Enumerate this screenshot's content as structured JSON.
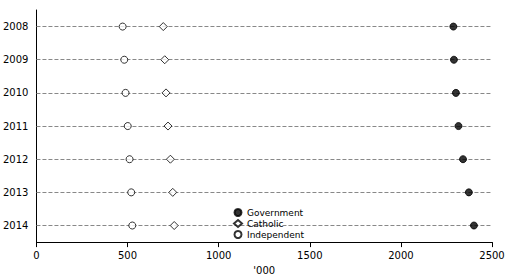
{
  "chart_data": {
    "type": "scatter",
    "orientation": "horizontal",
    "xlabel": "'000",
    "categories": [
      "2008",
      "2009",
      "2010",
      "2011",
      "2012",
      "2013",
      "2014"
    ],
    "series": [
      {
        "name": "Government",
        "color": "#000000",
        "marker": "filled_circle",
        "values": [
          2288,
          2291,
          2302,
          2316,
          2341,
          2373,
          2401
        ]
      },
      {
        "name": "Catholic",
        "color": "#000000",
        "marker": "open_diamond",
        "values": [
          696,
          704,
          711,
          722,
          735,
          748,
          756
        ]
      },
      {
        "name": "Independent",
        "color": "#000000",
        "marker": "open_circle",
        "values": [
          473,
          482,
          489,
          501,
          511,
          520,
          526
        ]
      }
    ],
    "xlim": [
      0,
      2500
    ],
    "xticks": [
      0,
      500,
      1000,
      1500,
      2000,
      2500
    ],
    "grid": true,
    "legend": "bottom"
  }
}
